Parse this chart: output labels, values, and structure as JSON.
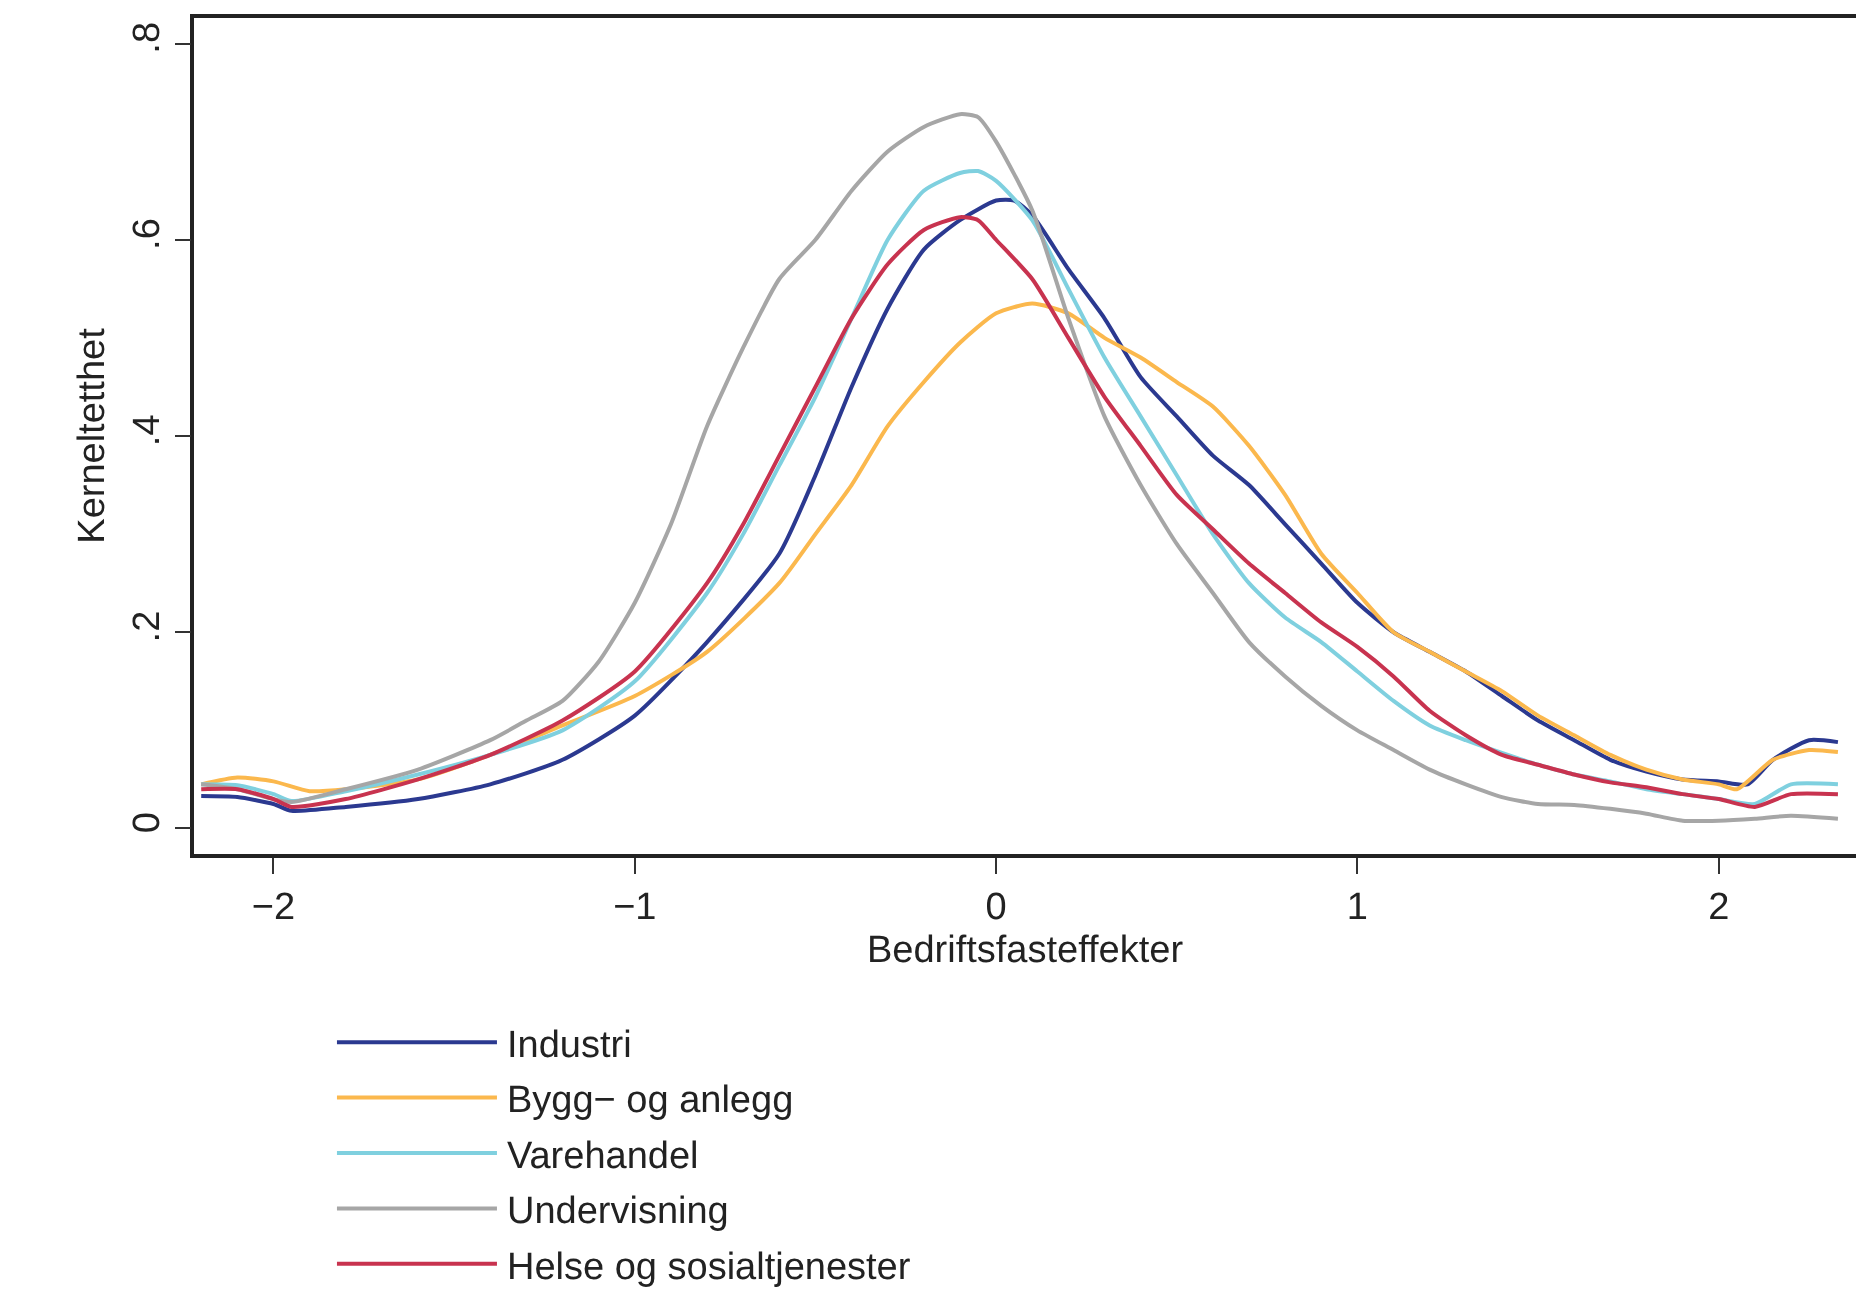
{
  "chart_data": {
    "type": "line",
    "xlabel": "Bedriftsfasteffekter",
    "ylabel": "Kerneltetthet",
    "xlim": [
      -2.22,
      2.38
    ],
    "ylim": [
      -0.026,
      0.826
    ],
    "xticks": [
      {
        "value": -2,
        "label": "−2"
      },
      {
        "value": -1,
        "label": "−1"
      },
      0,
      1,
      2
    ],
    "yticks": [
      0,
      {
        "value": 0.2,
        "label": ".2"
      },
      {
        "value": 0.4,
        "label": ".4"
      },
      {
        "value": 0.6,
        "label": ".6"
      },
      {
        "value": 0.8,
        "label": ".8"
      }
    ],
    "legend": "bottom",
    "marker": "none",
    "line_style": "solid",
    "series": [
      {
        "name": "Industri",
        "color": "#2b3990",
        "x": [
          -2.2,
          -2.1,
          -2.0,
          -1.95,
          -1.8,
          -1.6,
          -1.4,
          -1.2,
          -1.0,
          -0.8,
          -0.6,
          -0.5,
          -0.4,
          -0.3,
          -0.2,
          -0.1,
          0,
          0.05,
          0.1,
          0.2,
          0.3,
          0.4,
          0.5,
          0.6,
          0.7,
          0.8,
          0.9,
          1.0,
          1.1,
          1.2,
          1.3,
          1.4,
          1.5,
          1.6,
          1.7,
          1.8,
          1.9,
          2.0,
          2.08,
          2.15,
          2.25,
          2.33
        ],
        "values": [
          0.033,
          0.032,
          0.025,
          0.018,
          0.022,
          0.03,
          0.045,
          0.07,
          0.115,
          0.19,
          0.28,
          0.36,
          0.45,
          0.53,
          0.59,
          0.62,
          0.64,
          0.64,
          0.625,
          0.57,
          0.52,
          0.46,
          0.42,
          0.38,
          0.35,
          0.31,
          0.27,
          0.23,
          0.2,
          0.18,
          0.16,
          0.135,
          0.11,
          0.09,
          0.07,
          0.058,
          0.05,
          0.048,
          0.045,
          0.07,
          0.09,
          0.088
        ]
      },
      {
        "name": "Bygg− og anlegg",
        "color": "#fbb84d",
        "x": [
          -2.2,
          -2.1,
          -2.0,
          -1.9,
          -1.8,
          -1.6,
          -1.4,
          -1.2,
          -1.0,
          -0.8,
          -0.6,
          -0.5,
          -0.4,
          -0.3,
          -0.2,
          -0.1,
          0,
          0.1,
          0.2,
          0.3,
          0.4,
          0.5,
          0.6,
          0.7,
          0.8,
          0.9,
          1.0,
          1.1,
          1.2,
          1.3,
          1.4,
          1.5,
          1.6,
          1.7,
          1.8,
          1.9,
          2.0,
          2.05,
          2.15,
          2.25,
          2.33
        ],
        "values": [
          0.045,
          0.052,
          0.048,
          0.038,
          0.04,
          0.05,
          0.075,
          0.105,
          0.135,
          0.18,
          0.25,
          0.3,
          0.35,
          0.41,
          0.455,
          0.495,
          0.525,
          0.535,
          0.525,
          0.5,
          0.48,
          0.455,
          0.43,
          0.39,
          0.34,
          0.28,
          0.24,
          0.2,
          0.18,
          0.16,
          0.14,
          0.115,
          0.095,
          0.075,
          0.06,
          0.05,
          0.045,
          0.04,
          0.07,
          0.08,
          0.078
        ]
      },
      {
        "name": "Varehandel",
        "color": "#7fd0df",
        "x": [
          -2.2,
          -2.1,
          -2.0,
          -1.95,
          -1.8,
          -1.6,
          -1.4,
          -1.2,
          -1.0,
          -0.8,
          -0.7,
          -0.6,
          -0.5,
          -0.4,
          -0.3,
          -0.2,
          -0.1,
          -0.05,
          0,
          0.1,
          0.2,
          0.3,
          0.4,
          0.5,
          0.6,
          0.7,
          0.8,
          0.9,
          1.0,
          1.1,
          1.2,
          1.3,
          1.4,
          1.5,
          1.6,
          1.7,
          1.8,
          1.9,
          2.0,
          2.1,
          2.2,
          2.33
        ],
        "values": [
          0.045,
          0.044,
          0.035,
          0.028,
          0.038,
          0.055,
          0.075,
          0.1,
          0.15,
          0.24,
          0.3,
          0.37,
          0.44,
          0.52,
          0.6,
          0.65,
          0.668,
          0.67,
          0.66,
          0.62,
          0.55,
          0.48,
          0.42,
          0.36,
          0.3,
          0.25,
          0.215,
          0.19,
          0.16,
          0.13,
          0.105,
          0.09,
          0.077,
          0.065,
          0.055,
          0.048,
          0.04,
          0.035,
          0.03,
          0.025,
          0.045,
          0.045
        ]
      },
      {
        "name": "Undervisning",
        "color": "#a6a6a6",
        "x": [
          -2.2,
          -2.1,
          -2.0,
          -1.95,
          -1.8,
          -1.6,
          -1.4,
          -1.3,
          -1.2,
          -1.1,
          -1.0,
          -0.9,
          -0.8,
          -0.7,
          -0.6,
          -0.5,
          -0.4,
          -0.3,
          -0.2,
          -0.1,
          -0.05,
          0,
          0.1,
          0.2,
          0.3,
          0.4,
          0.5,
          0.6,
          0.7,
          0.8,
          0.9,
          1.0,
          1.1,
          1.2,
          1.3,
          1.4,
          1.5,
          1.6,
          1.7,
          1.8,
          1.9,
          2.0,
          2.1,
          2.2,
          2.33
        ],
        "values": [
          0.045,
          0.04,
          0.03,
          0.027,
          0.04,
          0.06,
          0.09,
          0.11,
          0.13,
          0.17,
          0.23,
          0.31,
          0.41,
          0.49,
          0.56,
          0.6,
          0.65,
          0.69,
          0.715,
          0.728,
          0.725,
          0.7,
          0.63,
          0.52,
          0.42,
          0.35,
          0.29,
          0.24,
          0.19,
          0.155,
          0.125,
          0.1,
          0.08,
          0.06,
          0.045,
          0.032,
          0.025,
          0.024,
          0.02,
          0.015,
          0.008,
          0.008,
          0.01,
          0.013,
          0.01
        ]
      },
      {
        "name": "Helse og sosialtjenester",
        "color": "#c8334f",
        "x": [
          -2.2,
          -2.1,
          -2.0,
          -1.95,
          -1.8,
          -1.6,
          -1.4,
          -1.2,
          -1.0,
          -0.8,
          -0.7,
          -0.6,
          -0.5,
          -0.4,
          -0.3,
          -0.2,
          -0.1,
          -0.05,
          0,
          0.1,
          0.2,
          0.3,
          0.4,
          0.5,
          0.6,
          0.7,
          0.8,
          0.9,
          1.0,
          1.1,
          1.2,
          1.3,
          1.4,
          1.5,
          1.6,
          1.7,
          1.8,
          1.9,
          2.0,
          2.1,
          2.2,
          2.33
        ],
        "values": [
          0.04,
          0.04,
          0.03,
          0.022,
          0.03,
          0.05,
          0.075,
          0.11,
          0.16,
          0.25,
          0.31,
          0.38,
          0.45,
          0.52,
          0.575,
          0.61,
          0.623,
          0.62,
          0.6,
          0.56,
          0.5,
          0.44,
          0.39,
          0.34,
          0.305,
          0.27,
          0.24,
          0.21,
          0.185,
          0.155,
          0.12,
          0.095,
          0.075,
          0.065,
          0.055,
          0.047,
          0.042,
          0.035,
          0.03,
          0.022,
          0.035,
          0.035
        ]
      }
    ]
  }
}
